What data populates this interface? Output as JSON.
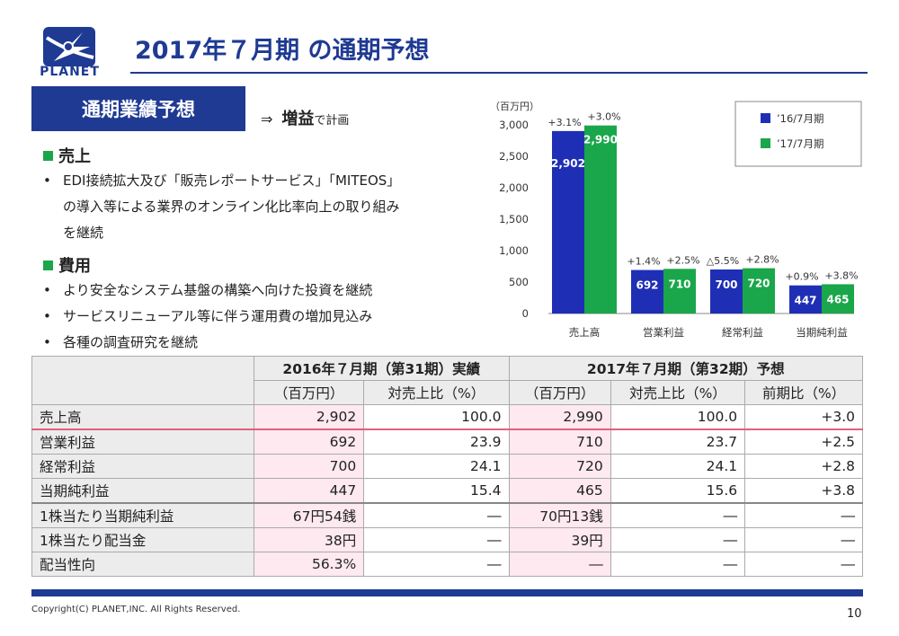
{
  "logo": {
    "text": "PLANET"
  },
  "title": "2017年７月期 の通期予想",
  "section": "通期業績予想",
  "result": {
    "arrow": "⇒",
    "main": "増益",
    "suffix": "で計画"
  },
  "sales": {
    "heading": "売上",
    "bullets": [
      {
        "line1": "EDI接続拡大及び「販売レポートサービス」「MITEOS」",
        "line2": "の導入等による業界のオンライン化比率向上の取り組み",
        "line3": "を継続"
      }
    ]
  },
  "costs": {
    "heading": "費用",
    "bullets": [
      "より安全なシステム基盤の構築へ向けた投資を継続",
      "サービスリニューアル等に伴う運用費の増加見込み",
      "各種の調査研究を継続"
    ]
  },
  "colors": {
    "blue": "#1f2fb5",
    "green": "#1aa64a",
    "brand": "#1f3a93"
  },
  "chart_data": {
    "type": "bar",
    "unit_label": "（百万円）",
    "categories": [
      "売上高",
      "営業利益",
      "経常利益",
      "当期純利益"
    ],
    "series": [
      {
        "name": "’16/7月期",
        "values": [
          2902,
          692,
          700,
          447
        ],
        "labels": [
          "2,902",
          "692",
          "700",
          "447"
        ],
        "changes": [
          "+3.1%",
          "+1.4%",
          "△5.5%",
          "+0.9%"
        ]
      },
      {
        "name": "’17/7月期",
        "values": [
          2990,
          710,
          720,
          465
        ],
        "labels": [
          "2,990",
          "710",
          "720",
          "465"
        ],
        "changes": [
          "+3.0%",
          "+2.5%",
          "+2.8%",
          "+3.8%"
        ]
      }
    ],
    "yticks": [
      "0",
      "500",
      "1,000",
      "1,500",
      "2,000",
      "2,500",
      "3,000"
    ],
    "ylim": [
      0,
      3000
    ],
    "legend": "top-right"
  },
  "table": {
    "h2016": "2016年７月期（第31期）実績",
    "h2017": "2017年７月期（第32期）予想",
    "sub": [
      "（百万円）",
      "対売上比（%）",
      "（百万円）",
      "対売上比（%）",
      "前期比（%）"
    ],
    "rows": [
      [
        "売上高",
        "2,902",
        "100.0",
        "2,990",
        "100.0",
        "+3.0"
      ],
      [
        "営業利益",
        "692",
        "23.9",
        "710",
        "23.7",
        "+2.5"
      ],
      [
        "経常利益",
        "700",
        "24.1",
        "720",
        "24.1",
        "+2.8"
      ],
      [
        "当期純利益",
        "447",
        "15.4",
        "465",
        "15.6",
        "+3.8"
      ],
      [
        "1株当たり当期純利益",
        "67円54銭",
        "―",
        "70円13銭",
        "―",
        "―"
      ],
      [
        "1株当たり配当金",
        "38円",
        "―",
        "39円",
        "―",
        "―"
      ],
      [
        "配当性向",
        "56.3%",
        "―",
        "―",
        "―",
        "―"
      ]
    ]
  },
  "copyright": "Copyright(C) PLANET,INC. All Rights Reserved.",
  "page_number": "10"
}
